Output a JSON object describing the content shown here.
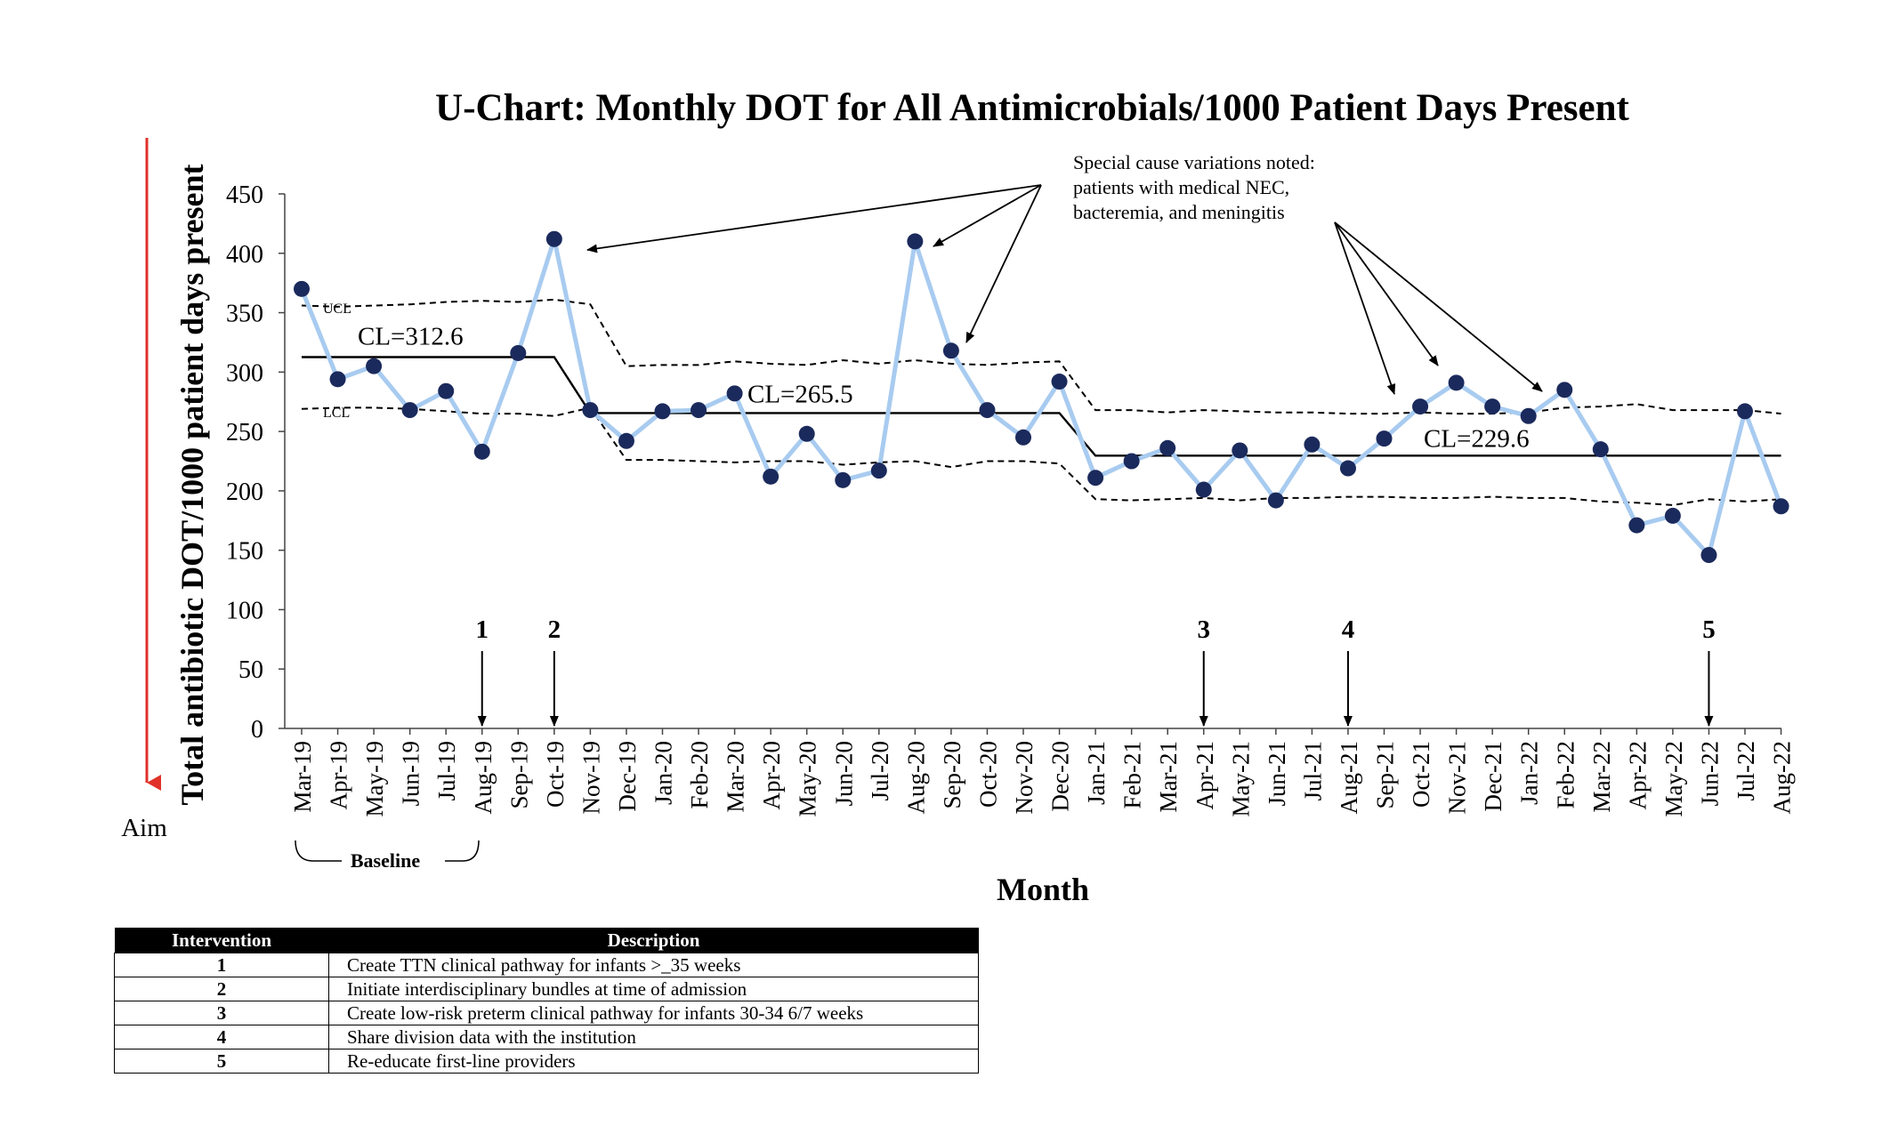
{
  "chart_data": {
    "type": "line",
    "title": "U-Chart: Monthly DOT for All Antimicrobials/1000 Patient Days Present",
    "xlabel": "Month",
    "ylabel": "Total antibiotic DOT/1000 patient days present",
    "ylim": [
      0,
      450
    ],
    "yticks": [
      0,
      50,
      100,
      150,
      200,
      250,
      300,
      350,
      400,
      450
    ],
    "categories": [
      "Mar-19",
      "Apr-19",
      "May-19",
      "Jun-19",
      "Jul-19",
      "Aug-19",
      "Sep-19",
      "Oct-19",
      "Nov-19",
      "Dec-19",
      "Jan-20",
      "Feb-20",
      "Mar-20",
      "Apr-20",
      "May-20",
      "Jun-20",
      "Jul-20",
      "Aug-20",
      "Sep-20",
      "Oct-20",
      "Nov-20",
      "Dec-20",
      "Jan-21",
      "Feb-21",
      "Mar-21",
      "Apr-21",
      "May-21",
      "Jun-21",
      "Jul-21",
      "Aug-21",
      "Sep-21",
      "Oct-21",
      "Nov-21",
      "Dec-21",
      "Jan-22",
      "Feb-22",
      "Mar-22",
      "Apr-22",
      "May-22",
      "Jun-22",
      "Jul-22",
      "Aug-22"
    ],
    "series": [
      {
        "name": "",
        "values": [
          370,
          294,
          305,
          268,
          284,
          233,
          316,
          412,
          268,
          242,
          267,
          268,
          282,
          212,
          248,
          209,
          217,
          410,
          318,
          268,
          245,
          292,
          211,
          225,
          236,
          201,
          234,
          192,
          239,
          219,
          244,
          271,
          291,
          271,
          263,
          285,
          235,
          171,
          179,
          146,
          267,
          187
        ]
      }
    ],
    "ucl": [
      356,
      355,
      356,
      357,
      359,
      360,
      359,
      361,
      357,
      305,
      306,
      306,
      309,
      307,
      306,
      310,
      307,
      310,
      307,
      306,
      308,
      309,
      268,
      268,
      266,
      268,
      267,
      266,
      266,
      265,
      265,
      266,
      265,
      265,
      266,
      270,
      271,
      273,
      268,
      268,
      268,
      265
    ],
    "lcl": [
      269,
      270,
      270,
      269,
      267,
      265,
      265,
      263,
      270,
      226,
      226,
      225,
      224,
      225,
      225,
      222,
      224,
      225,
      220,
      225,
      225,
      223,
      193,
      192,
      193,
      194,
      192,
      194,
      194,
      195,
      195,
      194,
      194,
      195,
      194,
      194,
      191,
      190,
      188,
      193,
      191,
      193
    ],
    "ucl_label": "UCL",
    "lcl_label": "LCL",
    "center_lines": [
      {
        "label": "CL=312.6",
        "value": 312.6,
        "from": "Mar-19",
        "to": "Oct-19"
      },
      {
        "label": "CL=265.5",
        "value": 265.5,
        "from": "Nov-19",
        "to": "Dec-20"
      },
      {
        "label": "CL=229.6",
        "value": 229.6,
        "from": "Jan-21",
        "to": "Aug-22"
      }
    ],
    "interventions": [
      {
        "number": "1",
        "month": "Aug-19"
      },
      {
        "number": "2",
        "month": "Oct-19"
      },
      {
        "number": "3",
        "month": "Apr-21"
      },
      {
        "number": "4",
        "month": "Aug-21"
      },
      {
        "number": "5",
        "month": "Jun-22"
      }
    ],
    "annotations": {
      "special_cause": [
        "Special cause variations noted:",
        "patients with medical NEC,",
        "bacteremia, and meningitis"
      ],
      "aim": "Aim",
      "baseline": "Baseline"
    },
    "grid": false
  },
  "table": {
    "headers": [
      "Intervention",
      "Description"
    ],
    "rows": [
      {
        "number": "1",
        "description": "Create TTN clinical pathway for infants >_35 weeks"
      },
      {
        "number": "2",
        "description": "Initiate interdisciplinary bundles at time of admission"
      },
      {
        "number": "3",
        "description": "Create low-risk preterm clinical pathway for infants 30-34 6/7 weeks"
      },
      {
        "number": "4",
        "description": "Share division data with the institution"
      },
      {
        "number": "5",
        "description": "Re-educate first-line providers"
      }
    ]
  },
  "colors": {
    "data_line": "#a8cbf0",
    "marker": "#1b2a5c",
    "aim_arrow": "#e0312a"
  }
}
